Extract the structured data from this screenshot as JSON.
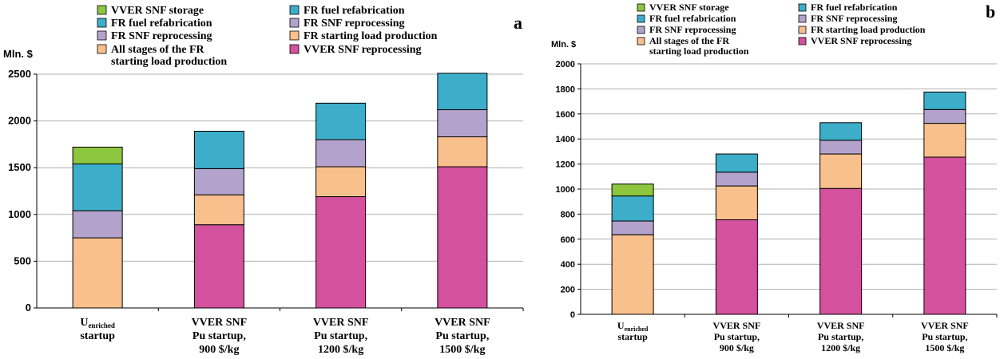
{
  "colors": {
    "vver_snf_storage": "#8dc63f",
    "fr_fuel_refabrication": "#3daec9",
    "fr_snf_reprocessing": "#b3a3cc",
    "fr_starting_load_production": "#f8c08d",
    "all_stages_fr_starting_load": "#f8c08d",
    "vver_snf_reprocessing": "#d4519e",
    "gridline": "#b0b0b0"
  },
  "chart_data": [
    {
      "panel": "a",
      "type": "bar",
      "stacked": true,
      "unit_label": "Mln. $",
      "ylim": [
        0,
        2500
      ],
      "yticks": [
        "0",
        "500",
        "1000",
        "1500",
        "2000",
        "2500"
      ],
      "grid": true,
      "legend_position": "top",
      "legend": [
        {
          "key": "vver_snf_storage",
          "label": "VVER SNF storage"
        },
        {
          "key": "fr_fuel_refabrication",
          "label": "FR fuel refabrication"
        },
        {
          "key": "fr_fuel_refabrication",
          "label": "FR fuel refabrication"
        },
        {
          "key": "fr_snf_reprocessing",
          "label": "FR SNF reprocessing"
        },
        {
          "key": "fr_snf_reprocessing",
          "label": "FR SNF reprocessing"
        },
        {
          "key": "fr_starting_load_production",
          "label": "FR starting load production"
        },
        {
          "key": "all_stages_fr_starting_load",
          "label": "All stages of the FR\nstarting load production"
        },
        {
          "key": "vver_snf_reprocessing",
          "label": "VVER SNF reprocessing"
        }
      ],
      "categories": [
        {
          "label": "U_enriched\nstartup"
        },
        {
          "label": "VVER SNF\nPu startup,\n900 $/kg"
        },
        {
          "label": "VVER SNF\nPu startup,\n1200 $/kg"
        },
        {
          "label": "VVER SNF\nPu startup,\n1500 $/kg"
        }
      ],
      "series": [
        {
          "key": "vver_snf_reprocessing",
          "values": [
            0,
            890,
            1190,
            1510
          ]
        },
        {
          "key": "fr_starting_load_production",
          "values": [
            750,
            320,
            320,
            320
          ]
        },
        {
          "key": "fr_snf_reprocessing",
          "values": [
            290,
            280,
            290,
            290
          ]
        },
        {
          "key": "fr_fuel_refabrication",
          "values": [
            500,
            400,
            390,
            390
          ]
        },
        {
          "key": "vver_snf_storage",
          "values": [
            180,
            0,
            0,
            0
          ]
        }
      ]
    },
    {
      "panel": "b",
      "type": "bar",
      "stacked": true,
      "unit_label": "Mln. $",
      "ylim": [
        0,
        2000
      ],
      "yticks": [
        "0",
        "200",
        "400",
        "600",
        "800",
        "1000",
        "1200",
        "1400",
        "1600",
        "1800",
        "2000"
      ],
      "grid": true,
      "legend_position": "top",
      "legend": [
        {
          "key": "vver_snf_storage",
          "label": "VVER SNF storage"
        },
        {
          "key": "fr_fuel_refabrication",
          "label": "FR fuel refabrication"
        },
        {
          "key": "fr_fuel_refabrication",
          "label": "FR fuel refabrication"
        },
        {
          "key": "fr_snf_reprocessing",
          "label": "FR SNF reprocessing"
        },
        {
          "key": "fr_snf_reprocessing",
          "label": "FR SNF reprocessing"
        },
        {
          "key": "fr_starting_load_production",
          "label": "FR starting load production"
        },
        {
          "key": "all_stages_fr_starting_load",
          "label": "All stages of the FR\nstarting load production"
        },
        {
          "key": "vver_snf_reprocessing",
          "label": "VVER SNF reprocessing"
        }
      ],
      "categories": [
        {
          "label": "U_enriched\nstartup"
        },
        {
          "label": "VVER SNF\nPu startup,\n900 $/kg"
        },
        {
          "label": "VVER SNF\nPu startup,\n1200 $/kg"
        },
        {
          "label": "VVER SNF\nPu startup,\n1500 $/kg"
        }
      ],
      "series": [
        {
          "key": "vver_snf_reprocessing",
          "values": [
            0,
            755,
            1005,
            1255
          ]
        },
        {
          "key": "fr_starting_load_production",
          "values": [
            635,
            270,
            275,
            270
          ]
        },
        {
          "key": "fr_snf_reprocessing",
          "values": [
            110,
            110,
            110,
            110
          ]
        },
        {
          "key": "fr_fuel_refabrication",
          "values": [
            200,
            145,
            140,
            140
          ]
        },
        {
          "key": "vver_snf_storage",
          "values": [
            95,
            0,
            0,
            0
          ]
        }
      ]
    }
  ]
}
